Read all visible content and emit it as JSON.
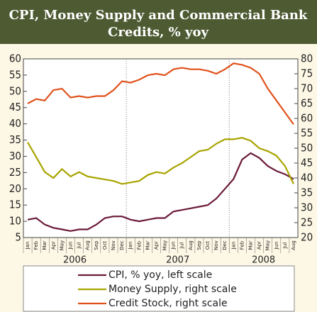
{
  "chart_data": {
    "type": "line",
    "title": "CPI, Money Supply and Commercial Bank Credits, % yoy",
    "categories": [
      "Jan",
      "Feb",
      "Mar",
      "Apr",
      "May",
      "Jun",
      "Jul",
      "Aug",
      "Sep",
      "Oct",
      "Nov",
      "Dec",
      "Jan",
      "Feb",
      "Mar",
      "Apr",
      "May",
      "Jun",
      "Jul",
      "Aug",
      "Sep",
      "Oct",
      "Nov",
      "Dec",
      "Jan",
      "Feb",
      "Mar",
      "Apr",
      "May",
      "Jun",
      "Jul",
      "Aug"
    ],
    "years": [
      "2006",
      "2007",
      "2008"
    ],
    "series": [
      {
        "name": "CPI, % yoy, left scale",
        "color": "#6b1a3a",
        "values": [
          10.5,
          11,
          9,
          8,
          7.5,
          7,
          7.5,
          7.5,
          9,
          11,
          11.5,
          11.5,
          10.5,
          10,
          10.5,
          11,
          11,
          13,
          13.5,
          14,
          14.5,
          15,
          17,
          20,
          23,
          29,
          31,
          29.5,
          27,
          25.5,
          24.5,
          23
        ]
      },
      {
        "name": "Money Supply, right scale",
        "color": "#a8a400",
        "axis": "y2",
        "values": [
          52,
          47,
          42,
          40,
          43,
          40.5,
          42,
          40.5,
          40,
          39.5,
          39,
          38,
          38.5,
          39,
          41,
          42,
          41.5,
          43.5,
          45,
          47,
          49,
          49.5,
          51.5,
          53,
          53,
          53.5,
          52.5,
          50,
          49,
          47.5,
          44,
          38
        ]
      },
      {
        "name": "Credit Stock, right scale",
        "color": "#e0521b",
        "axis": "y2",
        "values": [
          65,
          66.5,
          66,
          69.5,
          70,
          67,
          67.5,
          67,
          67.5,
          67.5,
          69.5,
          72.5,
          72,
          73,
          74.5,
          75,
          74.5,
          76.5,
          77,
          76.5,
          76.5,
          76,
          75,
          76.5,
          78.5,
          78,
          77,
          75,
          70,
          66,
          62,
          58
        ]
      }
    ],
    "ylim": [
      5,
      60
    ],
    "yticks": [
      5,
      10,
      15,
      20,
      25,
      30,
      35,
      40,
      45,
      50,
      55,
      60
    ],
    "y2lim": [
      20,
      80
    ],
    "y2ticks": [
      20,
      25,
      30,
      35,
      40,
      45,
      50,
      55,
      60,
      65,
      70,
      75,
      80
    ]
  }
}
